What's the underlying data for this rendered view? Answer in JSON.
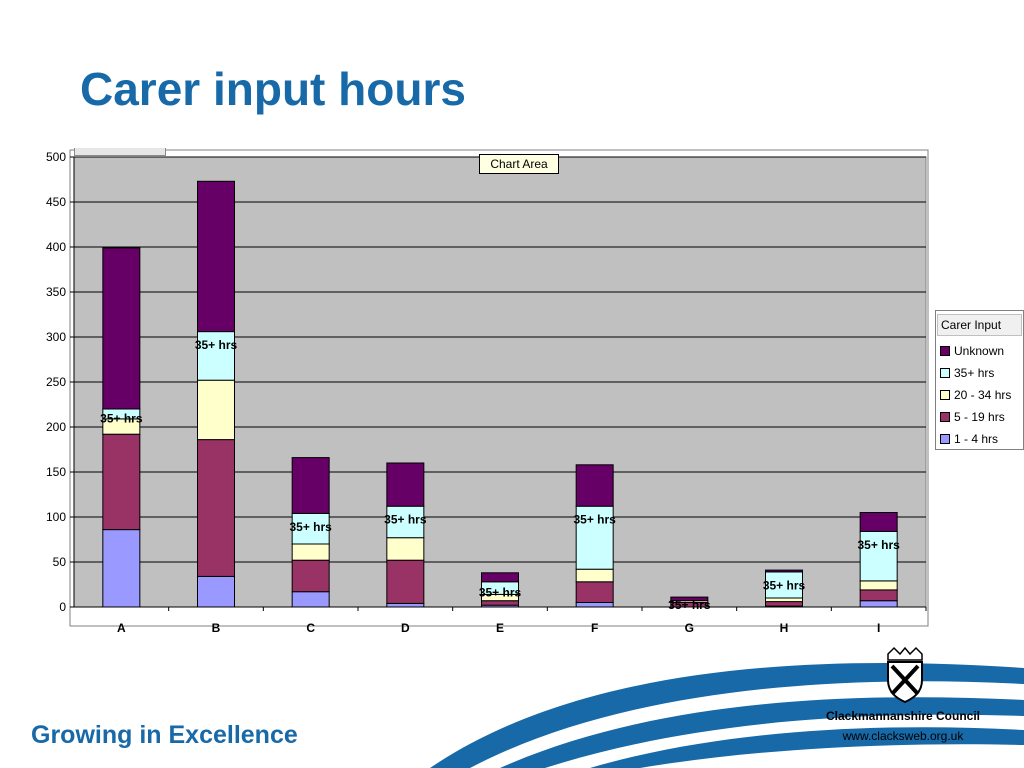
{
  "slide": {
    "title": "Carer input hours",
    "footer": "Growing in Excellence",
    "organisation": "Clackmannanshire Council",
    "website": "www.clacksweb.org.uk"
  },
  "tooltip": "Chart Area",
  "legend": {
    "title": "Carer Input",
    "items": [
      {
        "label": "Unknown",
        "color": "#660066"
      },
      {
        "label": "35+ hrs",
        "color": "#ccffff"
      },
      {
        "label": "20 - 34 hrs",
        "color": "#ffffcc"
      },
      {
        "label": "5 - 19 hrs",
        "color": "#993366"
      },
      {
        "label": "1 - 4 hrs",
        "color": "#9999ff"
      }
    ]
  },
  "colors": {
    "plot_background": "#c0c0c0",
    "title": "#1769a8",
    "swoosh": "#1769a8"
  },
  "chart_data": {
    "type": "bar",
    "stacked": true,
    "categories": [
      "A",
      "B",
      "C",
      "D",
      "E",
      "F",
      "G",
      "H",
      "I"
    ],
    "ylim": [
      0,
      500
    ],
    "yticks": [
      "0",
      "50",
      "100",
      "150",
      "200",
      "250",
      "300",
      "350",
      "400",
      "450",
      "500"
    ],
    "grid": true,
    "legend_position": "right",
    "series": [
      {
        "name": "1 - 4 hrs",
        "color": "#9999ff",
        "values": [
          86,
          34,
          17,
          4,
          2,
          5,
          0,
          1,
          7
        ]
      },
      {
        "name": "5 - 19 hrs",
        "color": "#993366",
        "values": [
          106,
          152,
          35,
          48,
          5,
          23,
          5,
          5,
          12
        ]
      },
      {
        "name": "20 - 34 hrs",
        "color": "#ffffcc",
        "values": [
          17,
          66,
          18,
          25,
          7,
          14,
          2,
          4,
          10
        ]
      },
      {
        "name": "35+ hrs",
        "color": "#ccffff",
        "values": [
          11,
          54,
          34,
          35,
          14,
          70,
          0,
          29,
          55
        ]
      },
      {
        "name": "Unknown",
        "color": "#660066",
        "values": [
          179,
          167,
          62,
          48,
          10,
          46,
          4,
          2,
          21
        ]
      }
    ],
    "annotation_text": "35+ hrs"
  }
}
